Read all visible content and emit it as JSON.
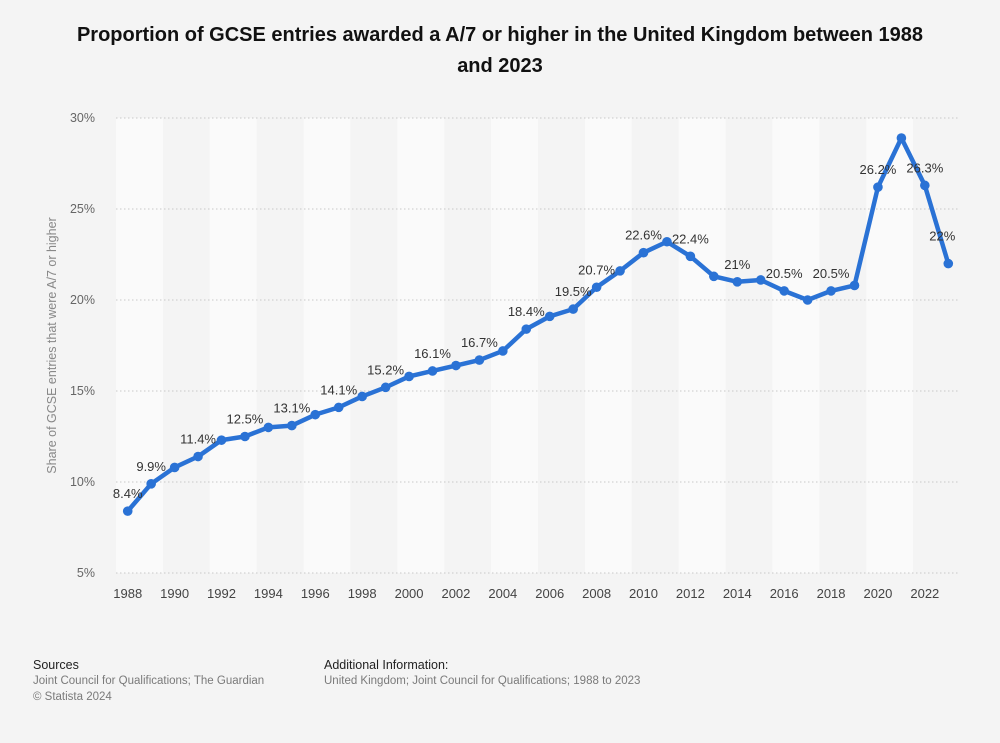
{
  "chart_data": {
    "type": "line",
    "title": "Proportion of GCSE entries awarded a A/7 or higher in the United Kingdom between 1988 and 2023",
    "xlabel": "",
    "ylabel": "Share of GCSE entries that were A/7 or higher",
    "ylim": [
      5,
      30
    ],
    "xlim": [
      1988,
      2023
    ],
    "y_ticks": [
      "5%",
      "10%",
      "15%",
      "20%",
      "25%",
      "30%"
    ],
    "y_tick_values": [
      5,
      10,
      15,
      20,
      25,
      30
    ],
    "x_ticks": [
      "1988",
      "1990",
      "1992",
      "1994",
      "1996",
      "1998",
      "2000",
      "2002",
      "2004",
      "2006",
      "2008",
      "2010",
      "2012",
      "2014",
      "2016",
      "2018",
      "2020",
      "2022"
    ],
    "grid": true,
    "legend": "none",
    "color": "#2a72d5",
    "series": [
      {
        "name": "Share of GCSE entries that were A/7 or higher",
        "x": [
          1988,
          1989,
          1990,
          1991,
          1992,
          1993,
          1994,
          1995,
          1996,
          1997,
          1998,
          1999,
          2000,
          2001,
          2002,
          2003,
          2004,
          2005,
          2006,
          2007,
          2008,
          2009,
          2010,
          2011,
          2012,
          2013,
          2014,
          2015,
          2016,
          2017,
          2018,
          2019,
          2020,
          2021,
          2022,
          2023
        ],
        "values": [
          8.4,
          9.9,
          10.8,
          11.4,
          12.3,
          12.5,
          13.0,
          13.1,
          13.7,
          14.1,
          14.7,
          15.2,
          15.8,
          16.1,
          16.4,
          16.7,
          17.2,
          18.4,
          19.1,
          19.5,
          20.7,
          21.6,
          22.6,
          23.2,
          22.4,
          21.3,
          21.0,
          21.1,
          20.5,
          20.0,
          20.5,
          20.8,
          26.2,
          28.9,
          26.3,
          22.0
        ]
      }
    ],
    "data_labels": [
      {
        "x": 1988,
        "text": "8.4%"
      },
      {
        "x": 1989,
        "text": "9.9%"
      },
      {
        "x": 1991,
        "text": "11.4%"
      },
      {
        "x": 1993,
        "text": "12.5%"
      },
      {
        "x": 1995,
        "text": "13.1%"
      },
      {
        "x": 1997,
        "text": "14.1%"
      },
      {
        "x": 1999,
        "text": "15.2%"
      },
      {
        "x": 2001,
        "text": "16.1%"
      },
      {
        "x": 2003,
        "text": "16.7%"
      },
      {
        "x": 2005,
        "text": "18.4%"
      },
      {
        "x": 2007,
        "text": "19.5%"
      },
      {
        "x": 2008,
        "text": "20.7%"
      },
      {
        "x": 2010,
        "text": "22.6%"
      },
      {
        "x": 2012,
        "text": "22.4%"
      },
      {
        "x": 2014,
        "text": "21%"
      },
      {
        "x": 2016,
        "text": "20.5%"
      },
      {
        "x": 2018,
        "text": "20.5%"
      },
      {
        "x": 2020,
        "text": "26.2%"
      },
      {
        "x": 2022,
        "text": "26.3%"
      },
      {
        "x": 2023,
        "text": "22%"
      }
    ]
  },
  "footer": {
    "sources_heading": "Sources",
    "sources_line1": "Joint Council for Qualifications; The Guardian",
    "sources_line2": "© Statista 2024",
    "additional_heading": "Additional Information:",
    "additional_text": "United Kingdom; Joint Council for Qualifications; 1988 to 2023"
  }
}
